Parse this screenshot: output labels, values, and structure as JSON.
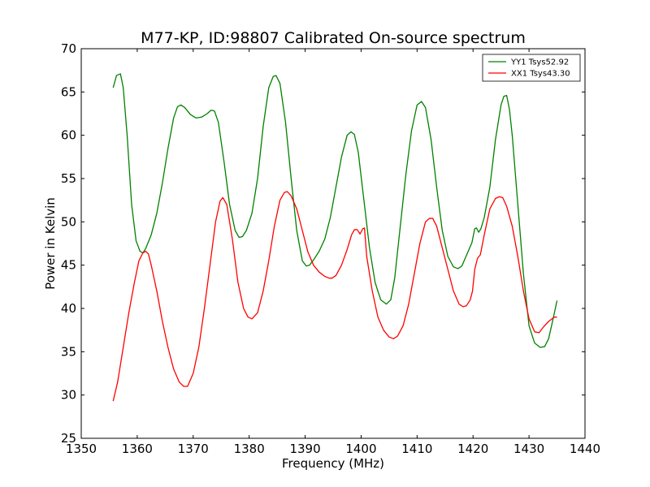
{
  "chart_data": {
    "type": "line",
    "title": "M77-KP, ID:98807 Calibrated On-source spectrum",
    "xlabel": "Frequency (MHz)",
    "ylabel": "Power in Kelvin",
    "xlim": [
      1350,
      1440
    ],
    "ylim": [
      25,
      70
    ],
    "xticks": [
      1350,
      1360,
      1370,
      1380,
      1390,
      1400,
      1410,
      1420,
      1430,
      1440
    ],
    "yticks": [
      25,
      30,
      35,
      40,
      45,
      50,
      55,
      60,
      65,
      70
    ],
    "grid": false,
    "legend_position": "top-right",
    "series": [
      {
        "name": "YY1 Tsys52.92",
        "color": "#008000",
        "x": [
          1355.7,
          1356.3,
          1357.0,
          1357.5,
          1358.2,
          1359.0,
          1359.8,
          1360.5,
          1361.0,
          1361.5,
          1362.5,
          1363.5,
          1364.5,
          1365.5,
          1366.5,
          1367.2,
          1367.8,
          1368.5,
          1369.5,
          1370.5,
          1371.5,
          1372.5,
          1373.2,
          1373.8,
          1374.5,
          1375.5,
          1376.5,
          1377.5,
          1378.2,
          1378.8,
          1379.5,
          1380.5,
          1381.5,
          1382.5,
          1383.5,
          1384.3,
          1384.8,
          1385.5,
          1386.5,
          1387.5,
          1388.5,
          1389.5,
          1390.2,
          1390.8,
          1391.5,
          1392.5,
          1393.5,
          1394.5,
          1395.5,
          1396.5,
          1397.5,
          1398.2,
          1398.8,
          1399.5,
          1400.5,
          1401.5,
          1402.5,
          1403.5,
          1404.5,
          1405.3,
          1406.0,
          1407.0,
          1408.0,
          1409.0,
          1410.0,
          1410.8,
          1411.5,
          1412.5,
          1413.5,
          1414.5,
          1415.5,
          1416.5,
          1417.3,
          1418.0,
          1419.0,
          1419.8,
          1420.3,
          1420.6,
          1421.0,
          1421.4,
          1422.0,
          1423.0,
          1424.0,
          1425.0,
          1425.5,
          1426.0,
          1426.5,
          1427.0,
          1428.0,
          1429.0,
          1430.0,
          1431.0,
          1432.0,
          1432.8,
          1433.5,
          1434.2,
          1435.0
        ],
        "values": [
          65.5,
          66.9,
          67.1,
          65.5,
          60.0,
          52.0,
          47.8,
          46.6,
          46.4,
          46.9,
          48.5,
          51.0,
          54.5,
          58.5,
          62.0,
          63.3,
          63.5,
          63.2,
          62.4,
          62.0,
          62.1,
          62.5,
          62.9,
          62.8,
          61.5,
          57.0,
          52.0,
          49.0,
          48.2,
          48.3,
          49.0,
          51.0,
          55.0,
          61.0,
          65.5,
          66.8,
          66.9,
          66.0,
          61.5,
          55.0,
          49.0,
          45.5,
          44.9,
          45.0,
          45.6,
          46.6,
          48.0,
          50.5,
          54.0,
          57.5,
          60.0,
          60.4,
          60.1,
          58.0,
          52.5,
          47.0,
          43.0,
          41.0,
          40.5,
          41.0,
          43.5,
          49.5,
          55.5,
          60.5,
          63.5,
          63.9,
          63.2,
          59.5,
          54.0,
          49.0,
          46.0,
          44.8,
          44.6,
          44.9,
          46.4,
          47.6,
          49.2,
          49.3,
          48.8,
          49.2,
          50.5,
          54.0,
          59.5,
          63.5,
          64.5,
          64.6,
          63.0,
          60.0,
          52.0,
          44.0,
          38.0,
          36.0,
          35.5,
          35.6,
          36.5,
          38.5,
          40.9
        ]
      },
      {
        "name": "XX1 Tsys43.30",
        "color": "#ff0000",
        "x": [
          1355.7,
          1356.5,
          1357.5,
          1358.5,
          1359.5,
          1360.3,
          1361.0,
          1361.5,
          1362.0,
          1362.5,
          1363.5,
          1364.5,
          1365.5,
          1366.5,
          1367.5,
          1368.3,
          1369.0,
          1370.0,
          1371.0,
          1372.0,
          1373.0,
          1374.0,
          1374.8,
          1375.3,
          1376.0,
          1377.0,
          1378.0,
          1379.0,
          1379.8,
          1380.5,
          1381.5,
          1382.5,
          1383.5,
          1384.5,
          1385.5,
          1386.3,
          1386.8,
          1387.5,
          1388.5,
          1389.5,
          1390.5,
          1391.5,
          1392.5,
          1393.5,
          1394.3,
          1394.8,
          1395.5,
          1396.5,
          1397.5,
          1398.3,
          1398.8,
          1399.3,
          1399.8,
          1400.3,
          1400.6,
          1401.0,
          1402.0,
          1403.0,
          1404.0,
          1405.0,
          1405.8,
          1406.5,
          1407.5,
          1408.5,
          1409.5,
          1410.5,
          1411.5,
          1412.2,
          1412.8,
          1413.5,
          1414.5,
          1415.5,
          1416.5,
          1417.5,
          1418.2,
          1418.8,
          1419.5,
          1419.9,
          1420.3,
          1420.8,
          1421.3,
          1422.0,
          1423.0,
          1424.0,
          1424.7,
          1425.3,
          1426.0,
          1427.0,
          1428.0,
          1429.0,
          1430.0,
          1431.0,
          1431.8,
          1432.5,
          1433.5,
          1434.5,
          1435.0
        ],
        "values": [
          29.3,
          31.5,
          35.5,
          39.5,
          43.0,
          45.5,
          46.4,
          46.6,
          46.3,
          45.0,
          42.0,
          38.5,
          35.5,
          33.0,
          31.5,
          31.0,
          31.0,
          32.5,
          35.5,
          40.0,
          45.0,
          50.0,
          52.4,
          52.8,
          52.0,
          48.0,
          43.0,
          40.0,
          39.0,
          38.8,
          39.5,
          42.0,
          45.5,
          49.5,
          52.5,
          53.4,
          53.5,
          53.0,
          51.5,
          49.0,
          46.5,
          45.0,
          44.2,
          43.7,
          43.5,
          43.5,
          43.8,
          45.0,
          46.8,
          48.5,
          49.1,
          49.1,
          48.6,
          49.2,
          49.3,
          46.0,
          42.0,
          39.0,
          37.5,
          36.7,
          36.5,
          36.8,
          38.0,
          40.5,
          44.0,
          47.5,
          50.0,
          50.4,
          50.4,
          49.5,
          47.0,
          44.5,
          42.0,
          40.5,
          40.2,
          40.3,
          41.0,
          42.0,
          44.5,
          45.8,
          46.2,
          48.5,
          51.5,
          52.7,
          52.9,
          52.8,
          51.8,
          49.5,
          46.0,
          42.0,
          38.8,
          37.3,
          37.2,
          37.8,
          38.5,
          39.0,
          39.0
        ]
      }
    ]
  }
}
